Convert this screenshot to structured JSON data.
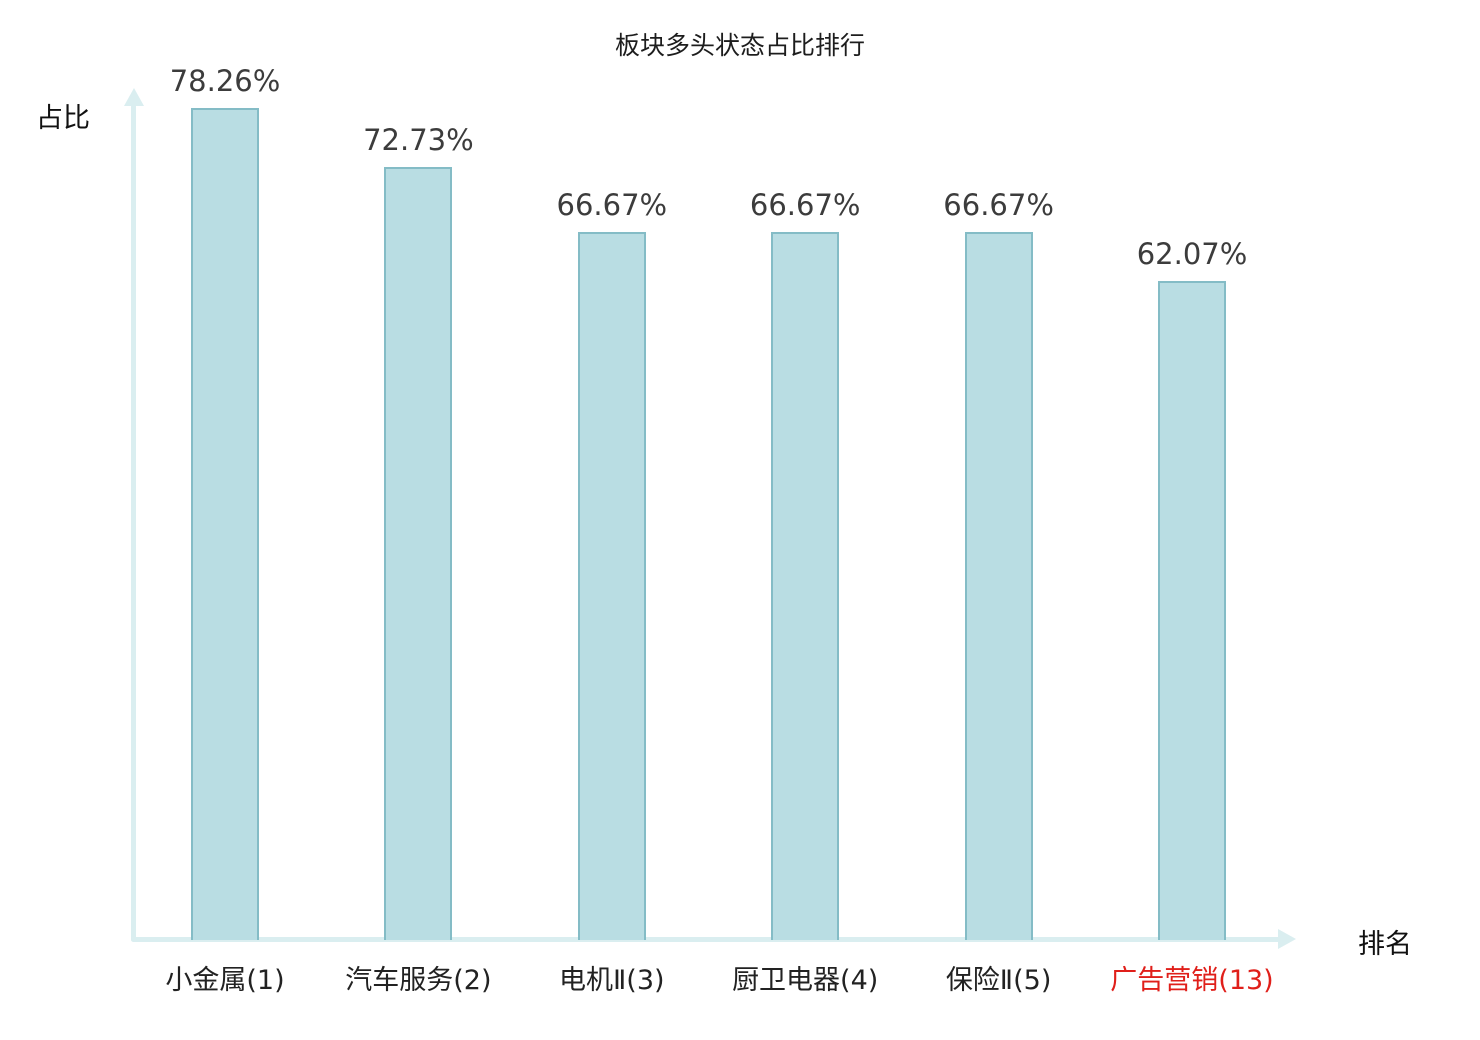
{
  "chart_data": {
    "type": "bar",
    "title": "板块多头状态占比排行",
    "xlabel": "排名",
    "ylabel": "占比",
    "categories": [
      "小金属(1)",
      "汽车服务(2)",
      "电机Ⅱ(3)",
      "厨卫电器(4)",
      "保险Ⅱ(5)",
      "广告营销(13)"
    ],
    "values": [
      78.26,
      72.73,
      66.67,
      66.67,
      66.67,
      62.07
    ],
    "value_labels": [
      "78.26%",
      "72.73%",
      "66.67%",
      "66.67%",
      "66.67%",
      "62.07%"
    ],
    "highlight_index": 5,
    "ylim": [
      0,
      80
    ],
    "grid": false,
    "legend": "none"
  },
  "colors": {
    "bar_fill": "#b9dde3",
    "bar_border": "#84bcc6",
    "axis": "#daeef0",
    "value_label": "#3c3c3c",
    "category_label": "#222222",
    "highlight_label": "#e01f1a"
  }
}
